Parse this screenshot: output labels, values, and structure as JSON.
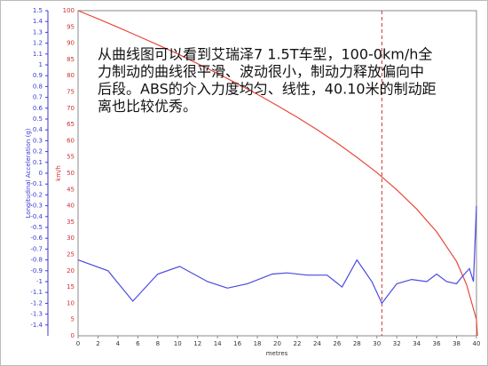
{
  "chart_data": {
    "type": "line",
    "annotation": [
      "从曲线图可以看到艾瑞泽7 1.5T车型，100-0km/h全",
      "力制动的曲线很平滑、波动很小，制动力释放偏向中",
      "后段。ABS的介入力度均匀、线性，40.10米的制动距",
      "离也比较优秀。"
    ],
    "y_label": "Longitudinal Acceleration (g)",
    "y2_label": "km/h",
    "x_label": "metres",
    "xlim": [
      0,
      40
    ],
    "xticks": [
      0,
      2,
      4,
      6,
      8,
      10,
      12,
      14,
      16,
      18,
      20,
      22,
      24,
      26,
      28,
      30,
      32,
      34,
      36,
      38,
      40
    ],
    "ylim": [
      -1.5,
      1.5
    ],
    "yticks": [
      1.5,
      1.4,
      1.3,
      1.2,
      1.1,
      1,
      0.9,
      0.8,
      0.7,
      0.6,
      0.5,
      0.4,
      0.3,
      0.2,
      0.1,
      0,
      -0.1,
      -0.2,
      -0.3,
      -0.4,
      -0.5,
      -0.6,
      -0.7,
      -0.8,
      -0.9,
      -1,
      -1.1,
      -1.2,
      -1.3,
      -1.4
    ],
    "y2lim": [
      0,
      100
    ],
    "y2ticks": [
      100,
      95,
      90,
      85,
      80,
      75,
      70,
      65,
      60,
      55,
      50,
      45,
      40,
      35,
      30,
      25,
      20,
      15,
      10,
      5,
      0
    ],
    "vline": {
      "x": 30.5,
      "color": "#d03030"
    },
    "series": [
      {
        "color": "#e8483c",
        "axis": "y2",
        "x": [
          0,
          2,
          4,
          6,
          8,
          10,
          12,
          14,
          16,
          18,
          20,
          22,
          24,
          26,
          28,
          30,
          32,
          34,
          36,
          38,
          39,
          40,
          40.1
        ],
        "values": [
          100,
          97.5,
          94.9,
          92.2,
          89.5,
          86.7,
          83.7,
          80.7,
          77.5,
          74.3,
          70.8,
          67.2,
          63.4,
          59.3,
          54.9,
          50.2,
          44.9,
          39.0,
          32.0,
          22.9,
          15.8,
          5.0,
          0
        ]
      },
      {
        "color": "#4a4ae0",
        "axis": "y",
        "x": [
          0,
          3,
          5.5,
          8,
          10.2,
          13,
          15,
          17,
          19.5,
          21,
          23,
          25,
          26.5,
          28,
          29.5,
          30.5,
          32,
          33.5,
          35,
          36,
          37,
          38,
          38.6,
          39.3,
          39.7,
          40
        ],
        "values": [
          -0.8,
          -0.9,
          -1.18,
          -0.93,
          -0.86,
          -1.0,
          -1.06,
          -1.02,
          -0.93,
          -0.92,
          -0.94,
          -0.94,
          -1.05,
          -0.8,
          -1.0,
          -1.2,
          -1.02,
          -0.98,
          -1.0,
          -0.93,
          -1.0,
          -1.02,
          -0.95,
          -0.88,
          -1.0,
          -0.3
        ]
      }
    ]
  }
}
